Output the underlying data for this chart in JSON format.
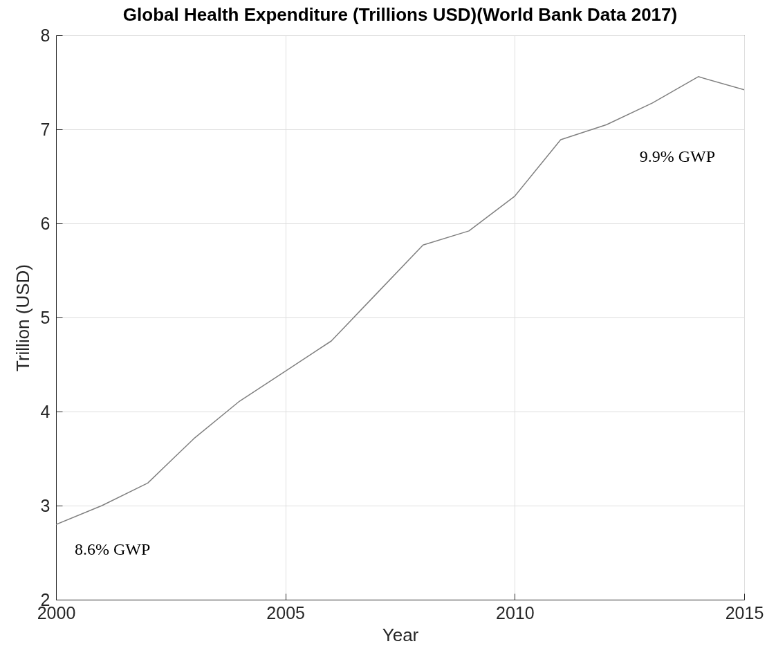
{
  "chart_data": {
    "type": "line",
    "title": "Global Health Expenditure (Trillions USD)(World Bank Data 2017)",
    "xlabel": "Year",
    "ylabel": "Trillion (USD)",
    "x": [
      2000,
      2001,
      2002,
      2003,
      2004,
      2005,
      2006,
      2007,
      2008,
      2009,
      2010,
      2011,
      2012,
      2013,
      2014,
      2015
    ],
    "series": [
      {
        "color": "#808080",
        "values": [
          2.8,
          3.0,
          3.24,
          3.71,
          4.11,
          4.43,
          4.75,
          5.26,
          5.77,
          5.92,
          6.29,
          6.89,
          7.05,
          7.28,
          7.56,
          7.42
        ]
      }
    ],
    "xlim": [
      2000,
      2015
    ],
    "xticks": [
      2000,
      2005,
      2010,
      2015
    ],
    "ylim": [
      2,
      8
    ],
    "yticks": [
      2,
      3,
      4,
      5,
      6,
      7,
      8
    ],
    "grid": true,
    "annotations": [
      "8.6% GWP",
      "9.9% GWP"
    ]
  }
}
